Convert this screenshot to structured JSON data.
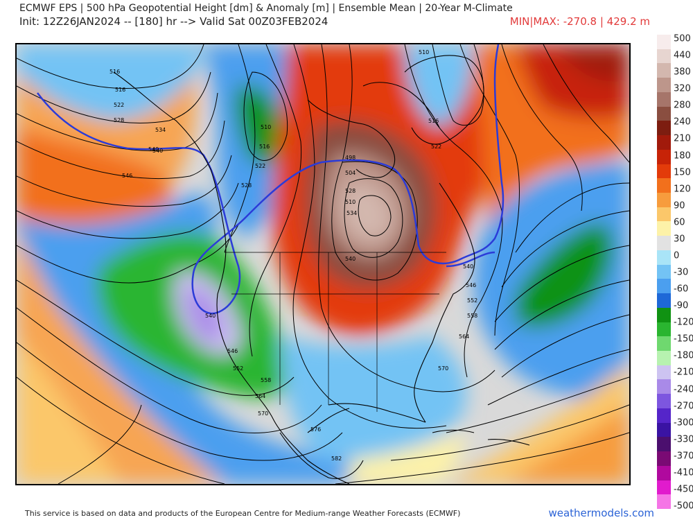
{
  "header": {
    "title": "ECMWF EPS | 500 hPa Geopotential Height [dm] & Anomaly [m] | Ensemble Mean | 20-Year M-Climate",
    "init_line": "Init: 12Z26JAN2024 -- [180] hr --> Valid Sat 00Z03FEB2024",
    "minmax": "MIN|MAX: -270.8 | 429.2 m"
  },
  "map": {
    "contour_labels": [
      "516",
      "516",
      "522",
      "528",
      "534",
      "540",
      "546",
      "510",
      "516",
      "522",
      "528",
      "540",
      "540",
      "546",
      "552",
      "558",
      "564",
      "570",
      "576",
      "582",
      "552",
      "558",
      "564",
      "570",
      "546",
      "540",
      "534",
      "528",
      "522",
      "516",
      "510",
      "498",
      "504",
      "510",
      "540"
    ],
    "colors": {
      "land_outline": "#000000",
      "contour": "#000000",
      "c540": "#2b3bd8"
    }
  },
  "colorbar": {
    "labels": [
      "500",
      "440",
      "380",
      "320",
      "280",
      "240",
      "210",
      "180",
      "150",
      "120",
      "90",
      "60",
      "30",
      "0",
      "-30",
      "-60",
      "-90",
      "-120",
      "-150",
      "-180",
      "-210",
      "-240",
      "-270",
      "-300",
      "-330",
      "-370",
      "-410",
      "-450",
      "-500"
    ],
    "colors": [
      "#f7ecec",
      "#e7d5d0",
      "#d3b7ae",
      "#bd968b",
      "#a6756a",
      "#8a4e40",
      "#7d1d10",
      "#a11a0b",
      "#c72307",
      "#e33b0a",
      "#f2701c",
      "#f79c3d",
      "#fbc76a",
      "#fdf2a8",
      "#e2e2e2",
      "#a9e4f7",
      "#73c3f4",
      "#4b9fef",
      "#1e68d7",
      "#109212",
      "#2ab530",
      "#6fd86f",
      "#b7f2b0",
      "#cdc3f1",
      "#a98ae8",
      "#7d56df",
      "#5525c9",
      "#3a13a3",
      "#4b0f6e",
      "#7a0a74",
      "#b0099e",
      "#e11bcd",
      "#f575e6"
    ]
  },
  "footer": {
    "attribution": "This service is based on data and products of the European Centre for Medium-range Weather Forecasts (ECMWF)",
    "brand": "weathermodels.com"
  }
}
